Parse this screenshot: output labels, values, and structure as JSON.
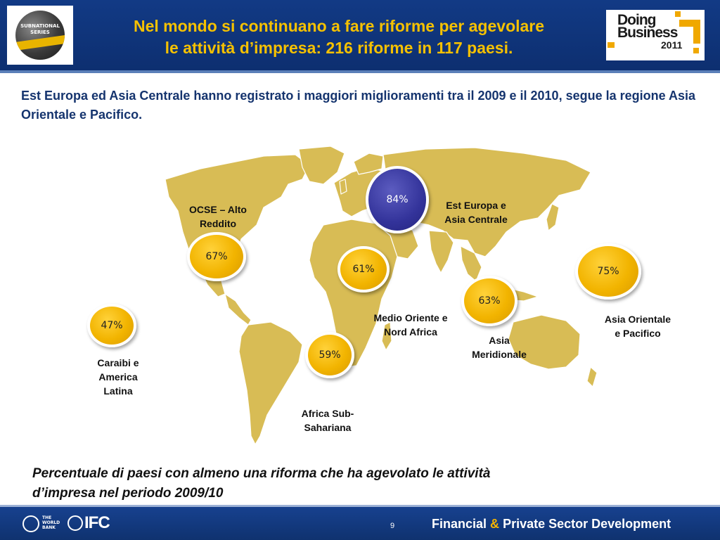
{
  "header": {
    "title_line1": "Nel mondo si continuano a fare riforme per agevolare",
    "title_line2": "le attività d’impresa: 216 riforme in 117 paesi.",
    "left_logo": {
      "line1": "SUBNATIONAL",
      "line2": "SERIES"
    },
    "right_logo": {
      "line1": "Doing",
      "line2": "Business",
      "year": "2011"
    }
  },
  "subtitle": "Est Europa ed Asia Centrale  hanno registrato i maggiori miglioramenti tra il 2009 e il 2010, segue la regione Asia Orientale e Pacifico.",
  "regions": [
    {
      "id": "eca",
      "value": "84%",
      "label_line1": "Est  Europa e",
      "label_line2": "Asia Centrale"
    },
    {
      "id": "oecd",
      "value": "67%",
      "label_line1": "OCSE – Alto",
      "label_line2": "Reddito"
    },
    {
      "id": "mena",
      "value": "61%",
      "label_line1": "Medio Oriente e",
      "label_line2": "Nord Africa"
    },
    {
      "id": "sa",
      "value": "63%",
      "label_line1": "Asia",
      "label_line2": "Meridionale"
    },
    {
      "id": "eap",
      "value": "75%",
      "label_line1": "Asia Orientale",
      "label_line2": "e Pacifico"
    },
    {
      "id": "lac",
      "value": "47%",
      "label_line1": "Caraibi e",
      "label_line2": "America",
      "label_line3": "Latina"
    },
    {
      "id": "ssa",
      "value": "59%",
      "label_line1": "Africa Sub-",
      "label_line2": "Sahariana"
    }
  ],
  "caption_line1": "Percentuale di paesi con almeno una riforma che ha agevolato le attività",
  "caption_line2": "d’impresa nel periodo 2009/10",
  "footer": {
    "worldbank_line1": "THE",
    "worldbank_line2": "WORLD",
    "worldbank_line3": "BANK",
    "ifc": "IFC",
    "page_number": "9",
    "tagline_part1": "Financial",
    "tagline_amp": "&",
    "tagline_part2": "Private Sector Development"
  },
  "colors": {
    "header_blue": "#123a85",
    "title_gold": "#f5c100",
    "bubble_gold": "#f2b400",
    "bubble_blue": "#33339a",
    "map_land": "#d8bc55"
  }
}
